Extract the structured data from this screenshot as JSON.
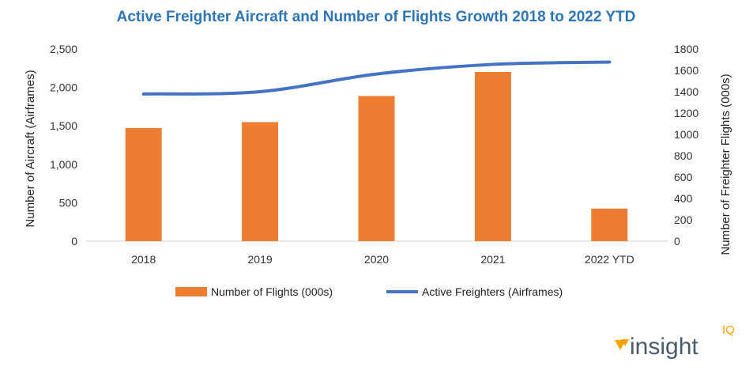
{
  "chart_data": {
    "type": "bar+line",
    "title": "Active Freighter Aircraft and Number of Flights Growth 2018 to 2022 YTD",
    "categories": [
      "2018",
      "2019",
      "2020",
      "2021",
      "2022 YTD"
    ],
    "series": [
      {
        "name": "Number of Flights (000s)",
        "type": "bar",
        "axis": "right",
        "values": [
          1060,
          1115,
          1360,
          1585,
          305
        ],
        "color": "#ED7D31"
      },
      {
        "name": "Active Freighters (Airframes)",
        "type": "line",
        "axis": "left",
        "values": [
          1915,
          1945,
          2175,
          2300,
          2330
        ],
        "color": "#4472C4"
      }
    ],
    "y_left": {
      "label": "Number of Aircraft (Airframes)",
      "ylim": [
        0,
        2500
      ],
      "ticks": [
        0,
        500,
        1000,
        1500,
        2000,
        2500
      ],
      "tick_labels": [
        "0",
        "500",
        "1,000",
        "1,500",
        "2,000",
        "2,500"
      ]
    },
    "y_right": {
      "label": "Number of Freighter Flights (000s)",
      "ylim": [
        0,
        1800
      ],
      "ticks": [
        0,
        200,
        400,
        600,
        800,
        1000,
        1200,
        1400,
        1600,
        1800
      ],
      "tick_labels": [
        "0",
        "200",
        "400",
        "600",
        "800",
        "1000",
        "1200",
        "1400",
        "1600",
        "1800"
      ]
    },
    "grid": false,
    "legend": "bottom",
    "title_color": "#2E75B6"
  },
  "logo": {
    "text": "insight",
    "superscript": "IQ",
    "text_color": "#4A5C6A",
    "accent_color": "#F7A400"
  }
}
